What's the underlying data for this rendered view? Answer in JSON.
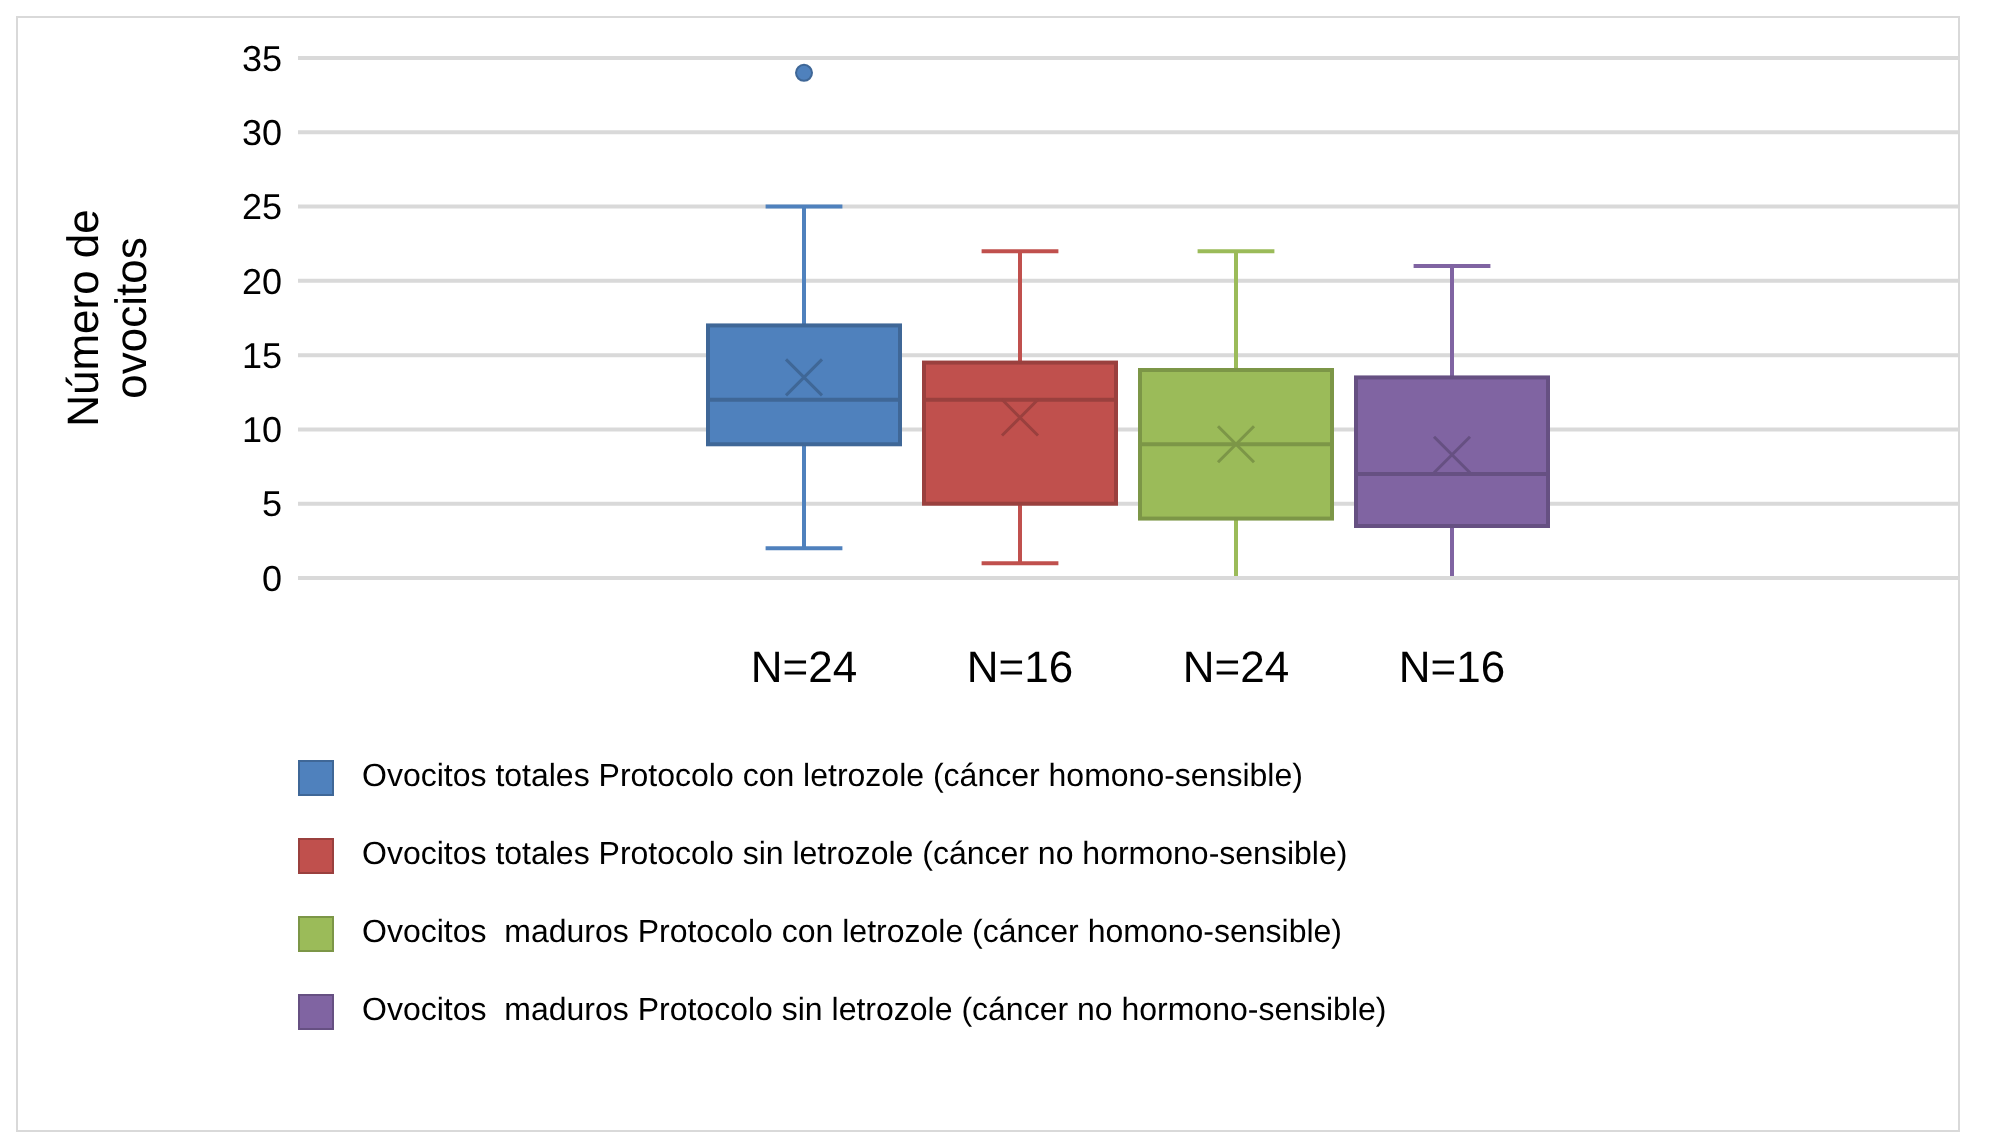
{
  "chart_data": {
    "type": "box",
    "ylabel": "Número de ovocitos",
    "categories": [
      null
    ],
    "annotations": [
      "N=24",
      "N=16",
      "N=24",
      "N=16"
    ],
    "ylim": [
      0,
      35
    ],
    "yticks": [
      0,
      5,
      10,
      15,
      20,
      25,
      30,
      35
    ],
    "grid": "y",
    "legend": "bottom",
    "marker": "cross",
    "series": [
      {
        "name": "Ovocitos totales Protocolo con letrozole (cáncer homono-sensible)",
        "color": "#4f81bd",
        "boxes": [
          {
            "low": 2,
            "q1": 9,
            "median": 12,
            "q3": 17,
            "high": 25,
            "mean": 13.5,
            "outliers": [
              34
            ]
          }
        ]
      },
      {
        "name": "Ovocitos totales Protocolo sin letrozole (cáncer no hormono-sensible)",
        "color": "#c0504d",
        "boxes": [
          {
            "low": 1,
            "q1": 5,
            "median": 12,
            "q3": 14.5,
            "high": 22,
            "mean": 10.8
          }
        ]
      },
      {
        "name": "Ovocitos  maduros Protocolo con letrozole (cáncer homono-sensible)",
        "color": "#9bbb59",
        "boxes": [
          {
            "low": 0,
            "q1": 4,
            "median": 9,
            "q3": 14,
            "high": 22,
            "mean": 9
          }
        ]
      },
      {
        "name": "Ovocitos  maduros Protocolo sin letrozole (cáncer no hormono-sensible)",
        "color": "#8064a2",
        "boxes": [
          {
            "low": 0,
            "q1": 3.5,
            "median": 7,
            "q3": 13.5,
            "high": 21,
            "mean": 8.3
          }
        ]
      }
    ]
  }
}
